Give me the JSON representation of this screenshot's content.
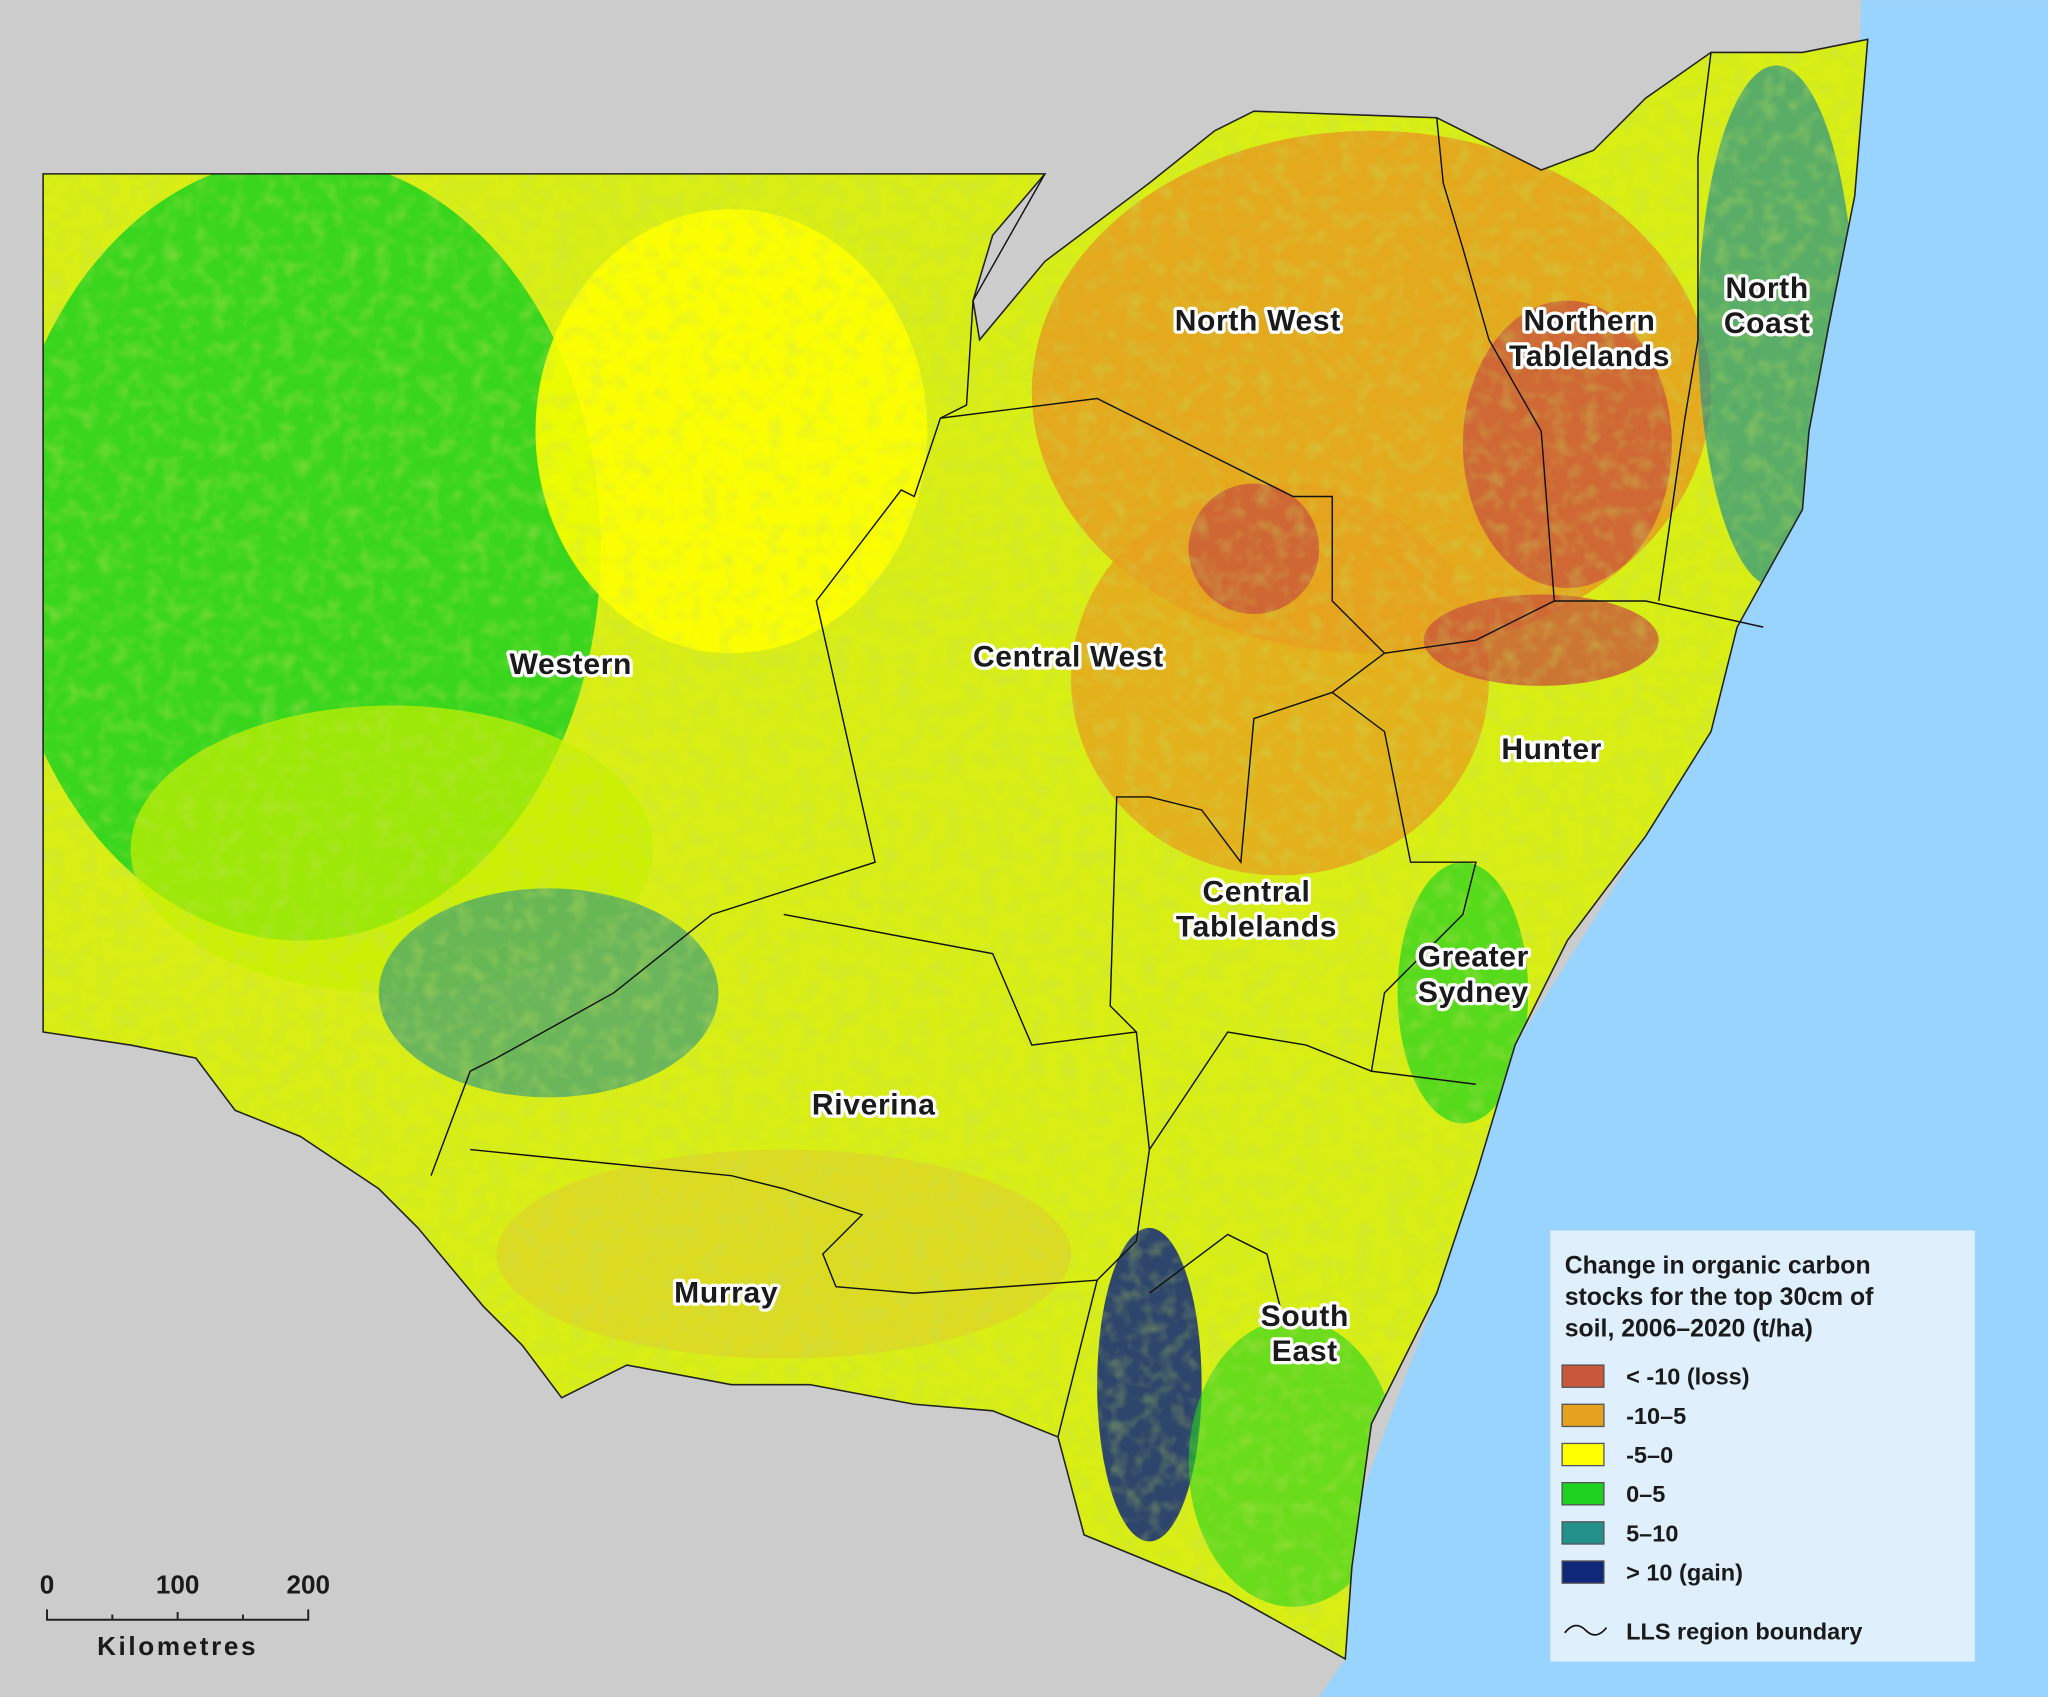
{
  "regions": [
    {
      "lines": [
        "North West"
      ]
    },
    {
      "lines": [
        "Northern",
        "Tablelands"
      ]
    },
    {
      "lines": [
        "North",
        "Coast"
      ]
    },
    {
      "lines": [
        "Western"
      ]
    },
    {
      "lines": [
        "Central West"
      ]
    },
    {
      "lines": [
        "Hunter"
      ]
    },
    {
      "lines": [
        "Central",
        "Tablelands"
      ]
    },
    {
      "lines": [
        "Greater",
        "Sydney"
      ]
    },
    {
      "lines": [
        "Riverina"
      ]
    },
    {
      "lines": [
        "Murray"
      ]
    },
    {
      "lines": [
        "South",
        "East"
      ]
    }
  ],
  "legend": {
    "title": [
      "Change in organic carbon",
      "stocks for the top 30cm of",
      "soil, 2006–2020 (t/ha)"
    ],
    "items": [
      {
        "label": "< -10 (loss)",
        "color": "#c9573b"
      },
      {
        "label": "-10–5",
        "color": "#e6a11e"
      },
      {
        "label": "-5–0",
        "color": "#ffff00"
      },
      {
        "label": "0–5",
        "color": "#1fd11f"
      },
      {
        "label": "5–10",
        "color": "#23918a"
      },
      {
        "label": "> 10 (gain)",
        "color": "#10287a"
      }
    ],
    "boundary": "LLS region boundary"
  },
  "scale_bar": {
    "ticks": [
      "0",
      "100",
      "200"
    ],
    "unit": "Kilometres"
  }
}
